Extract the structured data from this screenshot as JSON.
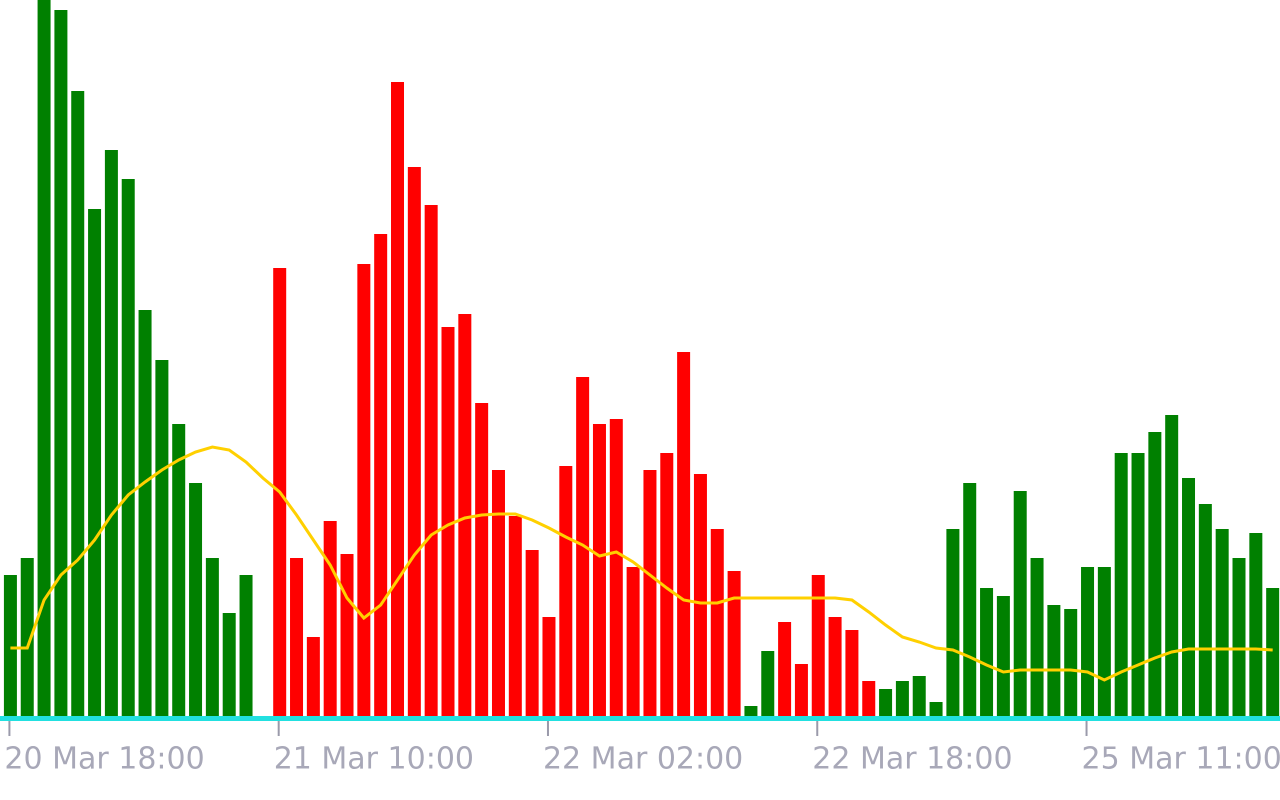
{
  "chart_data": {
    "type": "bar",
    "categories": [
      "20 Mar 18:00",
      null,
      null,
      null,
      null,
      null,
      null,
      null,
      null,
      null,
      null,
      null,
      null,
      null,
      null,
      null,
      "21 Mar 10:00",
      null,
      null,
      null,
      null,
      null,
      null,
      null,
      null,
      null,
      null,
      null,
      null,
      null,
      null,
      null,
      "22 Mar 02:00",
      null,
      null,
      null,
      null,
      null,
      null,
      null,
      null,
      null,
      null,
      null,
      null,
      null,
      null,
      null,
      "22 Mar 18:00",
      null,
      null,
      null,
      null,
      null,
      null,
      null,
      null,
      null,
      null,
      null,
      null,
      null,
      null,
      null,
      "25 Mar 11:00",
      null,
      null,
      null,
      null,
      null,
      null,
      null,
      null,
      null,
      null,
      null
    ],
    "series": [
      {
        "type": "bar",
        "values": [
          141,
          158,
          716,
          706,
          625,
          507,
          566,
          537,
          406,
          356,
          292,
          233,
          158,
          103,
          141,
          null,
          448,
          158,
          79,
          195,
          162,
          452,
          482,
          634,
          549,
          511,
          389,
          402,
          313,
          246,
          200,
          166,
          99,
          250,
          339,
          292,
          297,
          149,
          246,
          263,
          364,
          242,
          187,
          145,
          10,
          65,
          94,
          52,
          141,
          99,
          86,
          35,
          27,
          35,
          40,
          14,
          187,
          233,
          128,
          120,
          225,
          158,
          111,
          107,
          149,
          149,
          263,
          263,
          284,
          301,
          238,
          212,
          187,
          158,
          183,
          128
        ],
        "colors": [
          "#008000",
          "#008000",
          "#008000",
          "#008000",
          "#008000",
          "#008000",
          "#008000",
          "#008000",
          "#008000",
          "#008000",
          "#008000",
          "#008000",
          "#008000",
          "#008000",
          "#008000",
          null,
          "#ff0000",
          "#ff0000",
          "#ff0000",
          "#ff0000",
          "#ff0000",
          "#ff0000",
          "#ff0000",
          "#ff0000",
          "#ff0000",
          "#ff0000",
          "#ff0000",
          "#ff0000",
          "#ff0000",
          "#ff0000",
          "#ff0000",
          "#ff0000",
          "#ff0000",
          "#ff0000",
          "#ff0000",
          "#ff0000",
          "#ff0000",
          "#ff0000",
          "#ff0000",
          "#ff0000",
          "#ff0000",
          "#ff0000",
          "#ff0000",
          "#ff0000",
          "#008000",
          "#008000",
          "#ff0000",
          "#ff0000",
          "#ff0000",
          "#ff0000",
          "#ff0000",
          "#ff0000",
          "#008000",
          "#008000",
          "#008000",
          "#008000",
          "#008000",
          "#008000",
          "#008000",
          "#008000",
          "#008000",
          "#008000",
          "#008000",
          "#008000",
          "#008000",
          "#008000",
          "#008000",
          "#008000",
          "#008000",
          "#008000",
          "#008000",
          "#008000",
          "#008000",
          "#008000",
          "#008000",
          "#008000"
        ]
      },
      {
        "type": "line",
        "color": "#ffd000",
        "values": [
          68,
          68,
          116,
          141,
          156,
          176,
          201,
          221,
          234,
          246,
          256,
          264,
          269,
          266,
          254,
          238,
          224,
          201,
          176,
          151,
          118,
          98,
          111,
          136,
          161,
          181,
          191,
          198,
          201,
          202,
          202,
          196,
          188,
          179,
          171,
          160,
          164,
          154,
          141,
          128,
          116,
          113,
          113,
          118,
          118,
          118,
          118,
          118,
          118,
          118,
          116,
          104,
          91,
          79,
          74,
          68,
          66,
          59,
          51,
          44,
          46,
          46,
          46,
          46,
          44,
          36,
          44,
          51,
          58,
          64,
          67,
          67,
          67,
          67,
          67,
          66
        ]
      }
    ],
    "ylim": [
      0,
      716
    ]
  }
}
